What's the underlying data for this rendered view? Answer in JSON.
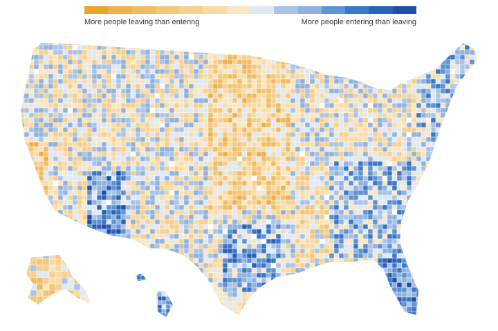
{
  "legend": {
    "left_label": "More people leaving than entering",
    "right_label": "More people entering than leaving",
    "colors": [
      "#e7a62c",
      "#edb04a",
      "#f0bc62",
      "#f3c778",
      "#f5d08f",
      "#f7dcaa",
      "#f9e6c4",
      "#dfe8f5",
      "#a9c4e6",
      "#8fb2df",
      "#5d92d3",
      "#3a78c7",
      "#2962b6",
      "#1f4ea6"
    ]
  },
  "map": {
    "type": "choropleth",
    "regions": [
      "contiguous-us",
      "alaska",
      "hawaii"
    ],
    "border_color": "#ffffff",
    "no_data_color": "#ffffff"
  }
}
